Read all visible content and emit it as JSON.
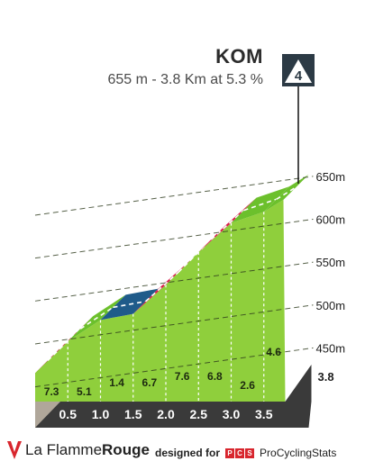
{
  "climb": {
    "name": "KOM",
    "summary": "655 m - 3.8 Km at 5.3 %",
    "category": "4"
  },
  "chart_data": {
    "type": "area",
    "title": "KOM",
    "subtitle": "655 m - 3.8 Km at 5.3 %",
    "x_unit": "km",
    "y_unit": "m",
    "ylim": [
      420,
      660
    ],
    "xlim": [
      0,
      3.8
    ],
    "y_ticks": [
      "450m",
      "500m",
      "550m",
      "600m",
      "650m"
    ],
    "y_tick_values": [
      450,
      500,
      550,
      600,
      650
    ],
    "km_ticks": [
      "0.5",
      "1.0",
      "1.5",
      "2.0",
      "2.5",
      "3.0",
      "3.5"
    ],
    "km_tick_values": [
      0.5,
      1.0,
      1.5,
      2.0,
      2.5,
      3.0,
      3.5
    ],
    "end_label": "3.8",
    "elevation_points": [
      {
        "x": 0.0,
        "y": 450
      },
      {
        "x": 0.5,
        "y": 487
      },
      {
        "x": 1.0,
        "y": 512
      },
      {
        "x": 1.5,
        "y": 519
      },
      {
        "x": 2.0,
        "y": 553
      },
      {
        "x": 2.5,
        "y": 591
      },
      {
        "x": 3.0,
        "y": 625
      },
      {
        "x": 3.5,
        "y": 638
      },
      {
        "x": 3.8,
        "y": 652
      }
    ],
    "gradients": [
      "7.3",
      "5.1",
      "1.4",
      "6.7",
      "7.6",
      "6.8",
      "2.6",
      "4.6"
    ],
    "gradient_values": [
      7.3,
      5.1,
      1.4,
      6.7,
      7.6,
      6.8,
      2.6,
      4.6
    ],
    "colors": {
      "steep": "#d81d4a",
      "moderate": "#6cc02c",
      "flat": "#1f5b8a",
      "grass": "#8fcf3c",
      "grass_dark": "#79b732",
      "base": "#3a3a3a",
      "wall": "#b0a79a",
      "grid": "#2d3a1c"
    }
  },
  "footer": {
    "brand_left_plain": "La Flamme",
    "brand_left_bold": "Rouge",
    "designed_by": "designed for",
    "pcs_letters": [
      "P",
      "C",
      "S"
    ],
    "brand_right": "ProCyclingStats"
  }
}
